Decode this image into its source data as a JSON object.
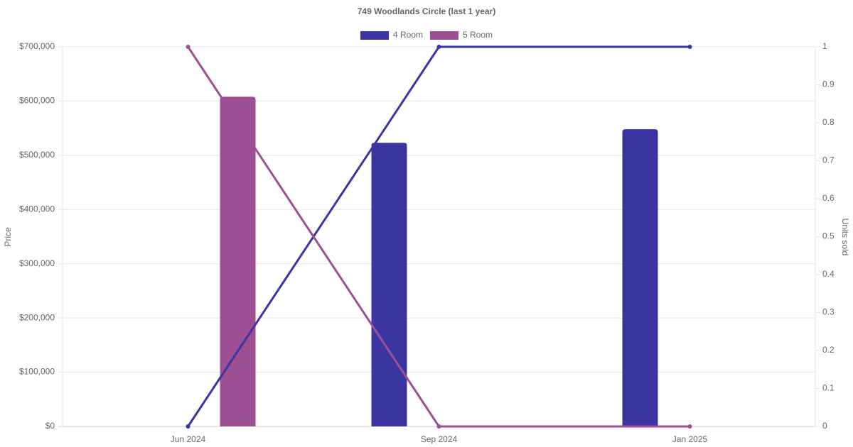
{
  "chart_data": {
    "type": "bar-line",
    "title": "749 Woodlands Circle (last 1 year)",
    "y_label": "Price",
    "y2_label": "Units sold",
    "categories": [
      "Jun 2024",
      "Sep 2024",
      "Jan 2025"
    ],
    "series": [
      {
        "name": "4 Room",
        "color": "#3a35a0",
        "values": [
          null,
          523000,
          548000
        ],
        "units_sold": [
          0,
          1,
          1
        ]
      },
      {
        "name": "5 Room",
        "color": "#9e4f94",
        "values": [
          608000,
          null,
          null
        ],
        "units_sold": [
          1,
          0,
          0
        ]
      }
    ],
    "ylim": [
      0,
      700000
    ],
    "yticks": [
      {
        "value": 0,
        "label": "$0"
      },
      {
        "value": 100000,
        "label": "$100,000"
      },
      {
        "value": 200000,
        "label": "$200,000"
      },
      {
        "value": 300000,
        "label": "$300,000"
      },
      {
        "value": 400000,
        "label": "$400,000"
      },
      {
        "value": 500000,
        "label": "$500,000"
      },
      {
        "value": 600000,
        "label": "$600,000"
      },
      {
        "value": 700000,
        "label": "$700,000"
      }
    ],
    "y2lim": [
      0,
      1
    ],
    "y2ticks": [
      0,
      0.1,
      0.2,
      0.3,
      0.4,
      0.5,
      0.6,
      0.7,
      0.8,
      0.9,
      1
    ],
    "grid": true,
    "legend": "top"
  }
}
